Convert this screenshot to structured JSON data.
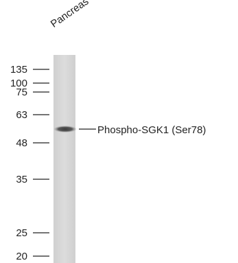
{
  "lane": {
    "label": "Pancreas"
  },
  "band": {
    "label": "Phospho-SGK1 (Ser78)"
  },
  "markers": [
    {
      "label": "135"
    },
    {
      "label": "100"
    },
    {
      "label": "75"
    },
    {
      "label": "63"
    },
    {
      "label": "48"
    },
    {
      "label": "35"
    },
    {
      "label": "25"
    },
    {
      "label": "20"
    }
  ]
}
